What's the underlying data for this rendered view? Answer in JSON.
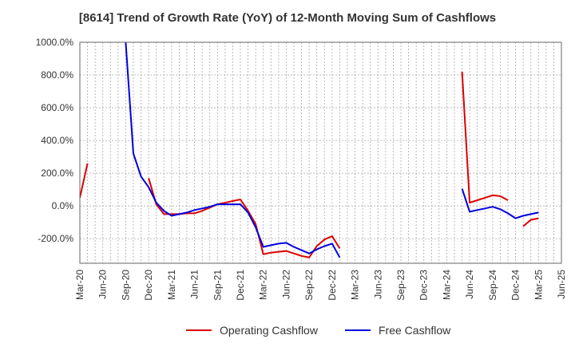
{
  "chart_data": {
    "type": "line",
    "title": "[8614]  Trend of Growth Rate (YoY) of 12-Month Moving Sum of Cashflows",
    "xlabel": "",
    "ylabel": "",
    "ylim": [
      -350,
      1000
    ],
    "y_ticks": [
      1000,
      800,
      600,
      400,
      200,
      0,
      -200
    ],
    "y_tick_labels": [
      "1000.0%",
      "800.0%",
      "600.0%",
      "400.0%",
      "200.0%",
      "0.0%",
      "-200.0%"
    ],
    "x_tick_labels": [
      "Mar-20",
      "Jun-20",
      "Sep-20",
      "Dec-20",
      "Mar-21",
      "Jun-21",
      "Sep-21",
      "Dec-21",
      "Mar-22",
      "Jun-22",
      "Sep-22",
      "Dec-22",
      "Mar-23",
      "Jun-23",
      "Sep-23",
      "Dec-23",
      "Mar-24",
      "Jun-24",
      "Sep-24",
      "Dec-24",
      "Mar-25",
      "Jun-25"
    ],
    "x_start": "2020-03",
    "x_end": "2025-06",
    "grid": true,
    "legend_position": "bottom",
    "series": [
      {
        "name": "Operating Cashflow",
        "color": "#dd0000",
        "points": [
          [
            "2020-03",
            50
          ],
          [
            "2020-04",
            260
          ],
          [
            "2020-05",
            null
          ],
          [
            "2020-12",
            170
          ],
          [
            "2021-01",
            10
          ],
          [
            "2021-02",
            -50
          ],
          [
            "2021-03",
            -50
          ],
          [
            "2021-04",
            -50
          ],
          [
            "2021-05",
            -45
          ],
          [
            "2021-06",
            -45
          ],
          [
            "2021-07",
            -30
          ],
          [
            "2021-08",
            -10
          ],
          [
            "2021-09",
            10
          ],
          [
            "2021-10",
            20
          ],
          [
            "2021-11",
            30
          ],
          [
            "2021-12",
            40
          ],
          [
            "2022-01",
            -30
          ],
          [
            "2022-02",
            -110
          ],
          [
            "2022-03",
            -295
          ],
          [
            "2022-04",
            -285
          ],
          [
            "2022-05",
            -280
          ],
          [
            "2022-06",
            -275
          ],
          [
            "2022-07",
            -290
          ],
          [
            "2022-08",
            -305
          ],
          [
            "2022-09",
            -315
          ],
          [
            "2022-10",
            -245
          ],
          [
            "2022-11",
            -205
          ],
          [
            "2022-12",
            -185
          ],
          [
            "2023-01",
            -260
          ],
          [
            "2023-02",
            null
          ],
          [
            "2024-05",
            820
          ],
          [
            "2024-06",
            20
          ],
          [
            "2024-07",
            35
          ],
          [
            "2024-08",
            50
          ],
          [
            "2024-09",
            65
          ],
          [
            "2024-10",
            60
          ],
          [
            "2024-11",
            35
          ],
          [
            "2024-12",
            null
          ],
          [
            "2025-01",
            -125
          ],
          [
            "2025-02",
            -85
          ],
          [
            "2025-03",
            -75
          ]
        ]
      },
      {
        "name": "Free Cashflow",
        "color": "#0000dd",
        "points": [
          [
            "2020-09",
            1000
          ],
          [
            "2020-10",
            320
          ],
          [
            "2020-11",
            180
          ],
          [
            "2020-12",
            115
          ],
          [
            "2021-01",
            20
          ],
          [
            "2021-02",
            -30
          ],
          [
            "2021-03",
            -60
          ],
          [
            "2021-04",
            -50
          ],
          [
            "2021-05",
            -40
          ],
          [
            "2021-06",
            -25
          ],
          [
            "2021-07",
            -15
          ],
          [
            "2021-08",
            -5
          ],
          [
            "2021-09",
            10
          ],
          [
            "2021-10",
            10
          ],
          [
            "2021-11",
            10
          ],
          [
            "2021-12",
            10
          ],
          [
            "2022-01",
            -40
          ],
          [
            "2022-02",
            -130
          ],
          [
            "2022-03",
            -250
          ],
          [
            "2022-04",
            -240
          ],
          [
            "2022-05",
            -230
          ],
          [
            "2022-06",
            -225
          ],
          [
            "2022-07",
            -250
          ],
          [
            "2022-08",
            -270
          ],
          [
            "2022-09",
            -290
          ],
          [
            "2022-10",
            -265
          ],
          [
            "2022-11",
            -245
          ],
          [
            "2022-12",
            -230
          ],
          [
            "2023-01",
            -315
          ],
          [
            "2023-02",
            null
          ],
          [
            "2024-05",
            105
          ],
          [
            "2024-06",
            -35
          ],
          [
            "2024-07",
            -25
          ],
          [
            "2024-08",
            -15
          ],
          [
            "2024-09",
            -5
          ],
          [
            "2024-10",
            -20
          ],
          [
            "2024-11",
            -45
          ],
          [
            "2024-12",
            -75
          ],
          [
            "2025-01",
            -60
          ],
          [
            "2025-02",
            -50
          ],
          [
            "2025-03",
            -40
          ]
        ]
      }
    ]
  }
}
